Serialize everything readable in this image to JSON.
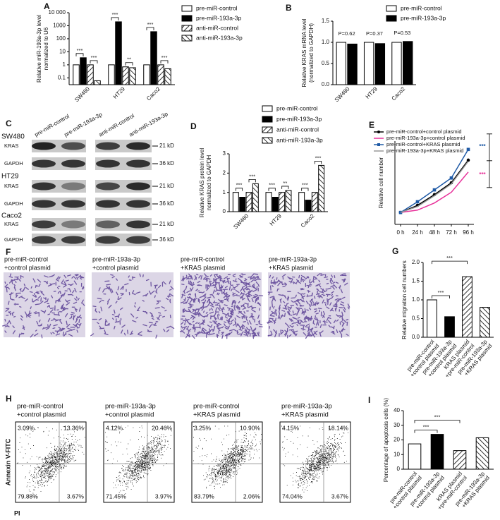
{
  "chart_data": [
    {
      "type": "bar",
      "label": "A",
      "y_label": [
        "Relative miR-193a-3p level",
        "normalized to U6"
      ],
      "log_scale": true,
      "categories": [
        "SW480",
        "HT29",
        "Caco2"
      ],
      "series": [
        {
          "name": "pre-miR-control",
          "style": "open",
          "values": [
            1,
            1,
            1
          ]
        },
        {
          "name": "pre-miR-193a-3p",
          "style": "solid",
          "values": [
            3.5,
            2000,
            350
          ]
        },
        {
          "name": "anti-miR-control",
          "style": "hatch-up",
          "values": [
            1,
            0.7,
            1
          ]
        },
        {
          "name": "anti-miR-193a-3p",
          "style": "hatch-down",
          "values": [
            0.06,
            0.6,
            0.5
          ]
        }
      ],
      "ylim": [
        0.03,
        10000
      ],
      "yticks": [
        0.1,
        1,
        10,
        100,
        1000,
        {
          "value": 10000,
          "label": "10 000"
        }
      ],
      "annotations": [
        "***",
        "***",
        "***",
        "**",
        "***",
        "***"
      ]
    },
    {
      "type": "bar",
      "label": "B",
      "y_label": [
        "Relative KRAS mRNA level",
        "(normalized to GAPDH)"
      ],
      "categories": [
        "SW480",
        "HT29",
        "Caco2"
      ],
      "series": [
        {
          "name": "pre-miR-control",
          "style": "open",
          "values": [
            1.0,
            1.0,
            1.0
          ]
        },
        {
          "name": "pre-miR-193a-3p",
          "style": "solid",
          "values": [
            0.96,
            0.97,
            1.02
          ]
        }
      ],
      "ylim": [
        0,
        1.5
      ],
      "yticks": [
        {
          "value": 0,
          "label": "0.0"
        },
        0.5,
        {
          "value": 1,
          "label": "1.0"
        },
        1.5
      ],
      "annotations": [
        "P=0.62",
        "P=0.37",
        "P=0.53"
      ]
    },
    {
      "type": "bar",
      "label": "D",
      "y_label": [
        "Relative KRAS protein level",
        "normalized to GAPDH"
      ],
      "categories": [
        "SW480",
        "HT29",
        "Caco2"
      ],
      "series": [
        {
          "name": "pre-miR-control",
          "style": "open",
          "values": [
            1,
            1,
            1
          ]
        },
        {
          "name": "pre-miR-193a-3p",
          "style": "solid",
          "values": [
            0.75,
            0.75,
            0.6
          ]
        },
        {
          "name": "anti-miR-control",
          "style": "hatch-up",
          "values": [
            1,
            1,
            1
          ]
        },
        {
          "name": "anti-miR-193a-3p",
          "style": "hatch-down",
          "values": [
            1.45,
            1.1,
            2.4
          ]
        }
      ],
      "ylim": [
        0,
        3
      ],
      "yticks": [
        0,
        1,
        2,
        3
      ],
      "annotations": [
        "***",
        "***",
        "***",
        "**",
        "***",
        "***"
      ]
    },
    {
      "type": "line",
      "label": "E",
      "y_label": [
        "Relative cell number"
      ],
      "categories": [
        "0 h",
        "24 h",
        "48 h",
        "72 h",
        "96 h"
      ],
      "series": [
        {
          "name": "pre-miR-control+control plasmid",
          "color": "#000000",
          "marker": "circle",
          "values": [
            1,
            1.6,
            2.5,
            3.5,
            5.4
          ]
        },
        {
          "name": "pre-miR-193a-3p+control plasmid",
          "color": "#e8319a",
          "marker": "none",
          "values": [
            1,
            1.2,
            1.8,
            2.7,
            4.4
          ]
        },
        {
          "name": "pre-miR-control+KRAS plasmid",
          "color": "#1f5aa6",
          "marker": "square",
          "values": [
            1,
            1.9,
            2.9,
            3.9,
            6.3
          ]
        },
        {
          "name": "pre-miR-193a-3p+KRAS plasmid",
          "color": "#999999",
          "marker": "none",
          "values": [
            1,
            1.5,
            2.4,
            3.4,
            5.3
          ]
        }
      ],
      "ylim": [
        0,
        7
      ],
      "annotations": [
        "***",
        "***"
      ]
    },
    {
      "type": "bar",
      "label": "G",
      "y_label": [
        "Relative migration cell numbers"
      ],
      "categories": [
        [
          "pre-miR-control",
          "+control plasmid"
        ],
        [
          "pre-miR-193a-3p",
          "+control plasmid"
        ],
        [
          "KRAS plasmid",
          "+pre-miR-control"
        ],
        [
          "pre-miR-193a-3p",
          "+KRAS plasmid"
        ]
      ],
      "bar_styles": [
        "open",
        "solid",
        "hatch-up",
        "hatch-down"
      ],
      "values": [
        1.0,
        0.55,
        1.62,
        0.8
      ],
      "ylim": [
        0,
        2
      ],
      "yticks": [
        {
          "value": 0,
          "label": "0.0"
        },
        0.5,
        {
          "value": 1,
          "label": "1.0"
        },
        1.5,
        {
          "value": 2,
          "label": "2.0"
        }
      ],
      "annotations": [
        "***",
        "***"
      ]
    },
    {
      "type": "bar",
      "label": "I",
      "y_label": [
        "Percentage of apoptosis cells (%)"
      ],
      "categories": [
        [
          "pre-miR-control",
          "+control plasmid"
        ],
        [
          "pre-miR-193a-3p",
          "+control plasmid"
        ],
        [
          "KRAS plasmid",
          "+pre-miR-control"
        ],
        [
          "pre-miR-193a-3p",
          "+KRAS plasmid"
        ]
      ],
      "bar_styles": [
        "open",
        "solid",
        "hatch-up",
        "hatch-down"
      ],
      "values": [
        17.3,
        23.8,
        12.7,
        21.5
      ],
      "ylim": [
        0,
        40
      ],
      "yticks": [
        0,
        10,
        20,
        30,
        40
      ],
      "annotations": [
        "***",
        "***"
      ]
    }
  ],
  "blot": {
    "label": "C",
    "lanes": [
      "pre-miR-control",
      "pre-miR-193a-3p",
      "anti-miR-control",
      "anti-miR-193a-3p"
    ],
    "cell_lines": [
      "SW480",
      "HT29",
      "Caco2"
    ],
    "proteins": [
      "KRAS",
      "GAPDH"
    ],
    "sizes": [
      "21 kD",
      "36 kD"
    ]
  },
  "micrographs": {
    "label": "F",
    "captions": [
      [
        "pre-miR-control",
        "+control plasmid"
      ],
      [
        "pre-miR-193a-3p",
        "+control plasmid"
      ],
      [
        "pre-miR-control",
        "+KRAS plasmid"
      ],
      [
        "pre-miR-193a-3p",
        "+KRAS plasmid"
      ]
    ]
  },
  "flow": {
    "label": "H",
    "x_label": "PI",
    "y_label": "Annexin V-FITC",
    "titles": [
      [
        "pre-miR-control",
        "+control plasmid"
      ],
      [
        "pre-miR-193a-3p",
        "+control plasmid"
      ],
      [
        "pre-miR-control",
        "+KRAS plasmid"
      ],
      [
        "pre-miR-193a-3p",
        "+KRAS plasmid"
      ]
    ],
    "quadrants": [
      [
        "3.09%",
        "13.36%",
        "79.88%",
        "3.67%"
      ],
      [
        "4.12%",
        "20.46%",
        "71.45%",
        "3.97%"
      ],
      [
        "3.25%",
        "10.90%",
        "83.79%",
        "2.06%"
      ],
      [
        "4.15%",
        "18.14%",
        "74.04%",
        "3.67%"
      ]
    ]
  }
}
